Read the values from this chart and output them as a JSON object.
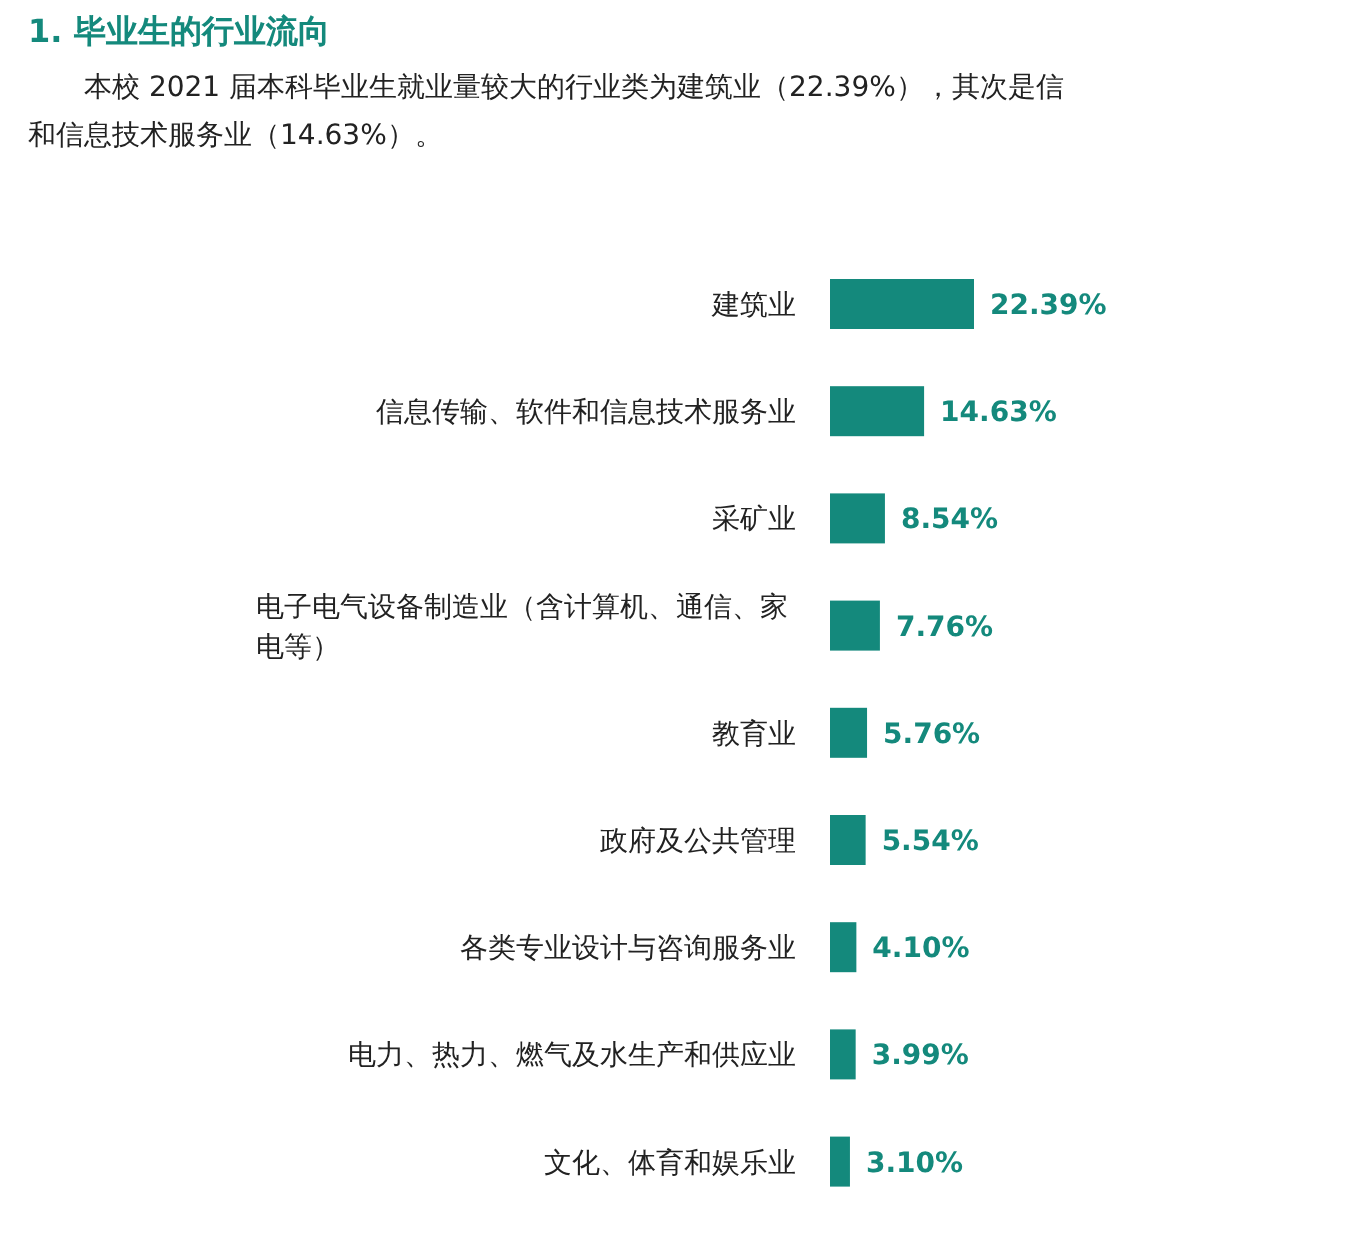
{
  "chart_data": {
    "type": "bar",
    "orientation": "horizontal",
    "title": "1.  毕业生的行业流向",
    "annotations": [
      "本校 2021 届本科毕业生就业量较大的行业类为建筑业（22.39%），其次是信",
      "和信息技术服务业（14.63%）。"
    ],
    "categories": [
      "建筑业",
      "信息传输、软件和信息技术服务业",
      "采矿业",
      "电子电气设备制造业（含计算机、通信、家电等）",
      "教育业",
      "政府及公共管理",
      "各类专业设计与咨询服务业",
      "电力、热力、燃气及水生产和供应业",
      "文化、体育和娱乐业"
    ],
    "values": [
      22.39,
      14.63,
      8.54,
      7.76,
      5.76,
      5.54,
      4.1,
      3.99,
      3.1
    ],
    "value_labels": [
      "22.39%",
      "14.63%",
      "8.54%",
      "7.76%",
      "5.76%",
      "5.54%",
      "4.10%",
      "3.99%",
      "3.10%"
    ],
    "color": "#14897c"
  }
}
